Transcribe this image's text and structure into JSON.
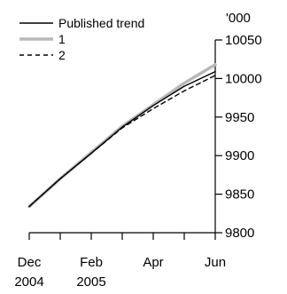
{
  "chart_data": {
    "type": "line",
    "title": "",
    "xlabel": "",
    "ylabel": "",
    "y_unit": "'000",
    "ylim": [
      9800,
      10050
    ],
    "y_ticks": [
      9800,
      9850,
      9900,
      9950,
      10000,
      10050
    ],
    "y_axis_side": "right",
    "x": [
      "2004-12",
      "2005-01",
      "2005-02",
      "2005-03",
      "2005-04",
      "2005-05",
      "2005-06"
    ],
    "x_ticks": [
      {
        "line1": "Dec",
        "line2": "2004"
      },
      {
        "line1": "Feb",
        "line2": "2005"
      },
      {
        "line1": "Apr",
        "line2": ""
      },
      {
        "line1": "Jun",
        "line2": ""
      }
    ],
    "grid": false,
    "legend_position": "top-left",
    "series": [
      {
        "name": "Published trend",
        "color": "#000000",
        "style": "solid",
        "values": [
          9834,
          9870,
          9903,
          9937,
          9965,
          9990,
          10009
        ]
      },
      {
        "name": "1",
        "color": "#b8b8b8",
        "style": "solid-thick",
        "values": [
          9834,
          9870,
          9904,
          9938,
          9966,
          9994,
          10018
        ]
      },
      {
        "name": "2",
        "color": "#000000",
        "style": "dashed",
        "values": [
          9834,
          9870,
          9903,
          9936,
          9961,
          9984,
          10004
        ]
      }
    ]
  }
}
